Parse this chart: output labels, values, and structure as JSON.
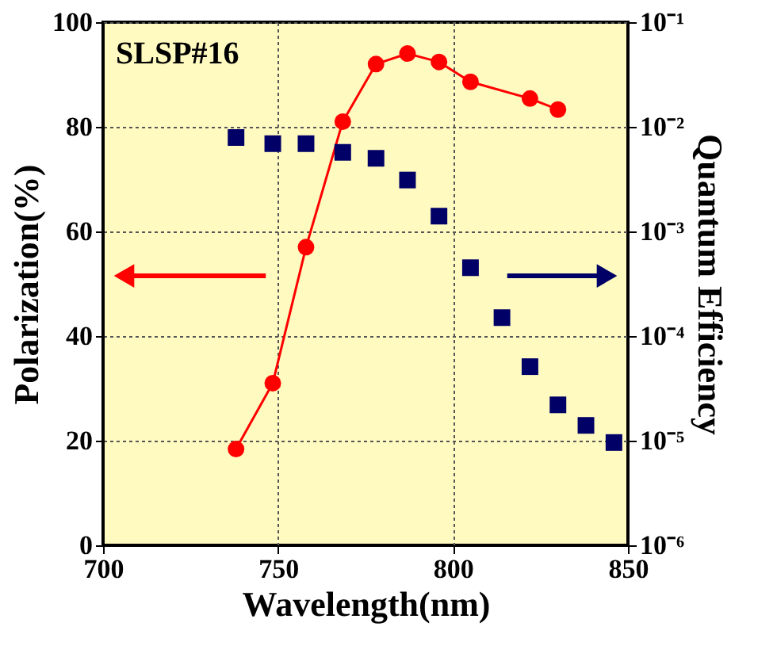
{
  "chart_data": {
    "type": "line",
    "xlabel": "Wavelength(nm)",
    "ylabel": "Polarization(%)",
    "y2label": "Quantum Efficiency",
    "annotations": [
      "SLSP#16"
    ],
    "xlim": [
      700,
      850
    ],
    "xticks": [
      700,
      750,
      800,
      850
    ],
    "ylim": [
      0,
      100
    ],
    "yticks": [
      0,
      20,
      40,
      60,
      80,
      100
    ],
    "y2lim": [
      1e-06,
      0.1
    ],
    "y2ticks": [
      {
        "value": 1e-06,
        "label": "10⁻⁶"
      },
      {
        "value": 1e-05,
        "label": "10⁻⁵"
      },
      {
        "value": 0.0001,
        "label": "10⁻⁴"
      },
      {
        "value": 0.001,
        "label": "10⁻³"
      },
      {
        "value": 0.01,
        "label": "10⁻²"
      },
      {
        "value": 0.1,
        "label": "10⁻¹"
      }
    ],
    "log": "y2",
    "grid": true,
    "series": [
      {
        "type": "line",
        "color": "#ff0000",
        "marker": "circle",
        "line_style": "solid",
        "x": [
          738,
          748.5,
          758,
          768.5,
          778,
          787,
          796,
          805,
          822,
          830
        ],
        "values": [
          18.4,
          31,
          57,
          81,
          92,
          94,
          92.4,
          88.6,
          85.4,
          83.3
        ]
      },
      {
        "type": "scatter",
        "axis": "y2",
        "color": "#000066",
        "marker": "square",
        "x": [
          738,
          748.5,
          758,
          768.5,
          778,
          787,
          796,
          805,
          814,
          822,
          830,
          838,
          846
        ],
        "values": [
          0.0079,
          0.0069,
          0.0069,
          0.0057,
          0.005,
          0.0031,
          0.0014,
          0.00045,
          0.00015,
          5.1e-05,
          2.2e-05,
          1.4e-05,
          9.6e-06
        ]
      }
    ]
  }
}
